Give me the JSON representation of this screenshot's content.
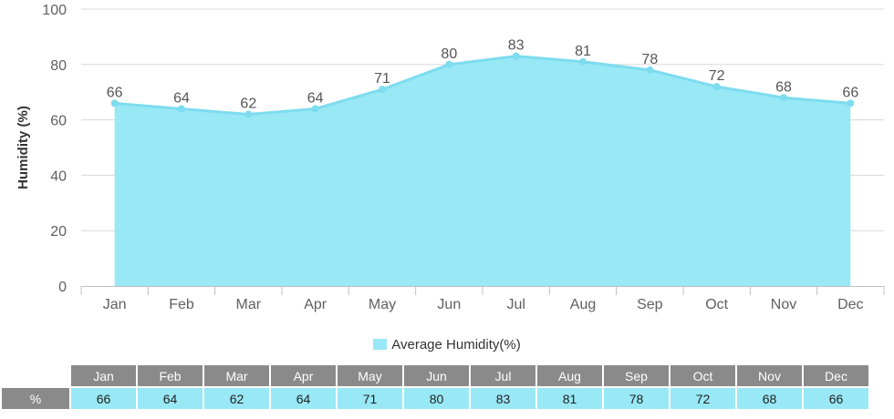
{
  "chart_data": {
    "type": "area",
    "categories": [
      "Jan",
      "Feb",
      "Mar",
      "Apr",
      "May",
      "Jun",
      "Jul",
      "Aug",
      "Sep",
      "Oct",
      "Nov",
      "Dec"
    ],
    "series": [
      {
        "name": "Average Humidity(%)",
        "values": [
          66,
          64,
          62,
          64,
          71,
          80,
          83,
          81,
          78,
          72,
          68,
          66
        ]
      }
    ],
    "ylabel": "Humidity (%)",
    "xlabel": "",
    "ylim": [
      0,
      100
    ],
    "yticks": [
      0,
      20,
      40,
      60,
      80,
      100
    ],
    "grid": true,
    "legend": "bottom-center",
    "fill_color": "#98e8f5",
    "line_color": "#7ddcef"
  },
  "table": {
    "row_label": "%"
  }
}
